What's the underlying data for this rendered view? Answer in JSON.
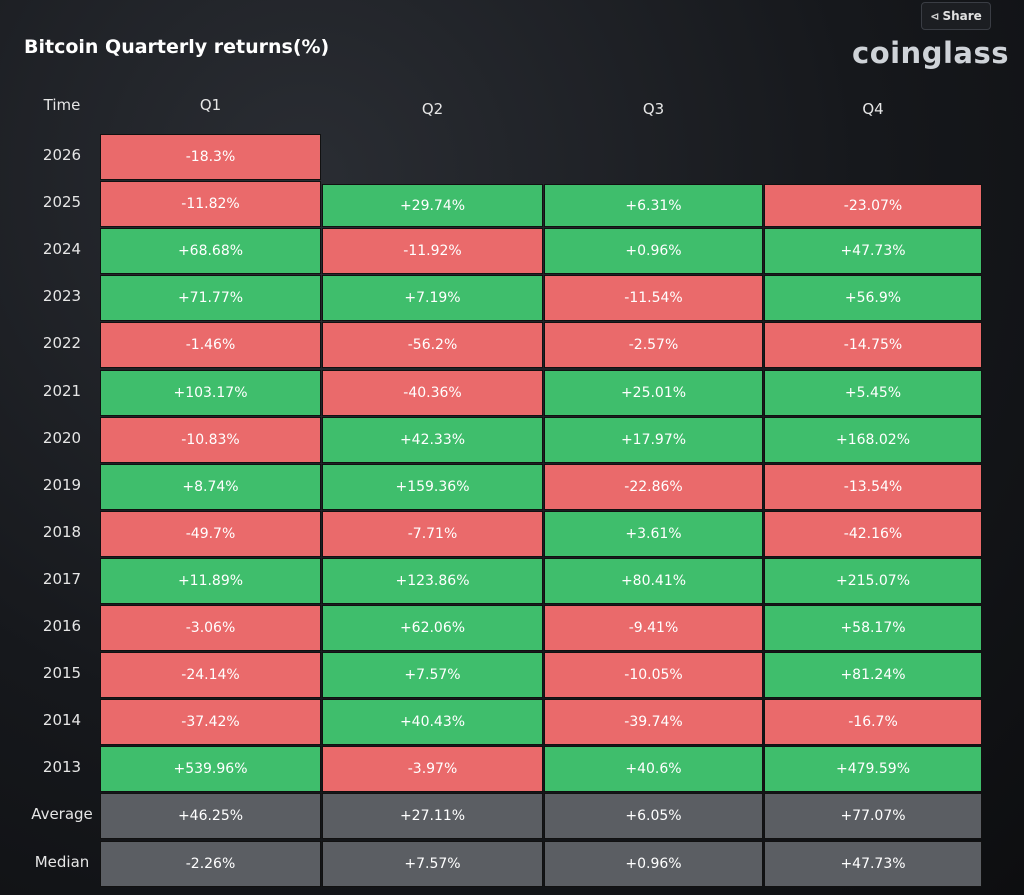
{
  "header": {
    "title": "Bitcoin Quarterly returns(%)",
    "share_label": "Share",
    "logo": "coinglass"
  },
  "colors": {
    "positive": "#3fbe6c",
    "negative": "#ea6a6b",
    "stat": "#5b5e63"
  },
  "chart_data": {
    "type": "table",
    "title": "Bitcoin Quarterly returns(%)",
    "corner_label": "Time",
    "columns": [
      "Q1",
      "Q2",
      "Q3",
      "Q4"
    ],
    "rows": [
      {
        "label": "2026",
        "values": [
          "-18.3%",
          null,
          null,
          null
        ]
      },
      {
        "label": "2025",
        "values": [
          "-11.82%",
          "+29.74%",
          "+6.31%",
          "-23.07%"
        ]
      },
      {
        "label": "2024",
        "values": [
          "+68.68%",
          "-11.92%",
          "+0.96%",
          "+47.73%"
        ]
      },
      {
        "label": "2023",
        "values": [
          "+71.77%",
          "+7.19%",
          "-11.54%",
          "+56.9%"
        ]
      },
      {
        "label": "2022",
        "values": [
          "-1.46%",
          "-56.2%",
          "-2.57%",
          "-14.75%"
        ]
      },
      {
        "label": "2021",
        "values": [
          "+103.17%",
          "-40.36%",
          "+25.01%",
          "+5.45%"
        ]
      },
      {
        "label": "2020",
        "values": [
          "-10.83%",
          "+42.33%",
          "+17.97%",
          "+168.02%"
        ]
      },
      {
        "label": "2019",
        "values": [
          "+8.74%",
          "+159.36%",
          "-22.86%",
          "-13.54%"
        ]
      },
      {
        "label": "2018",
        "values": [
          "-49.7%",
          "-7.71%",
          "+3.61%",
          "-42.16%"
        ]
      },
      {
        "label": "2017",
        "values": [
          "+11.89%",
          "+123.86%",
          "+80.41%",
          "+215.07%"
        ]
      },
      {
        "label": "2016",
        "values": [
          "-3.06%",
          "+62.06%",
          "-9.41%",
          "+58.17%"
        ]
      },
      {
        "label": "2015",
        "values": [
          "-24.14%",
          "+7.57%",
          "-10.05%",
          "+81.24%"
        ]
      },
      {
        "label": "2014",
        "values": [
          "-37.42%",
          "+40.43%",
          "-39.74%",
          "-16.7%"
        ]
      },
      {
        "label": "2013",
        "values": [
          "+539.96%",
          "-3.97%",
          "+40.6%",
          "+479.59%"
        ]
      }
    ],
    "summary_rows": [
      {
        "label": "Average",
        "values": [
          "+46.25%",
          "+27.11%",
          "+6.05%",
          "+77.07%"
        ]
      },
      {
        "label": "Median",
        "values": [
          "-2.26%",
          "+7.57%",
          "+0.96%",
          "+47.73%"
        ]
      }
    ]
  }
}
